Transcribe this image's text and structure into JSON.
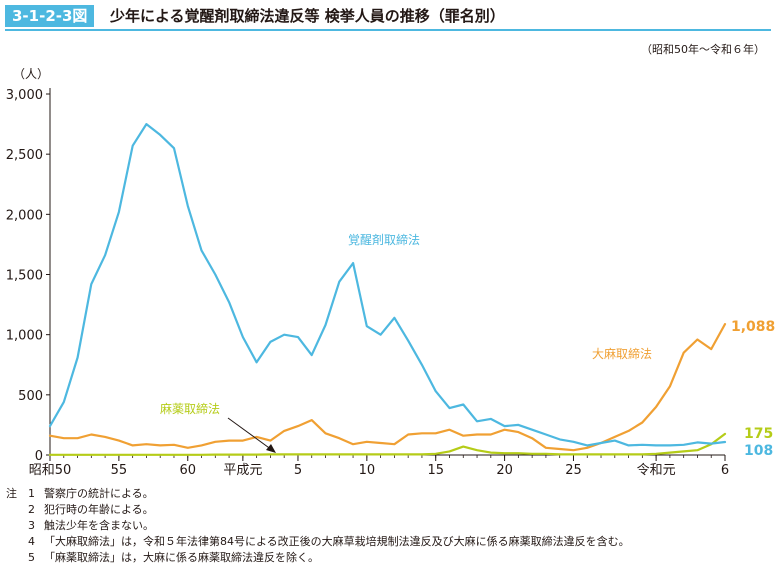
{
  "figure": {
    "number": "3-1-2-3図",
    "title": "少年による覚醒剤取締法違反等 検挙人員の推移（罪名別）",
    "period": "（昭和50年～令和６年）"
  },
  "colors": {
    "accent": "#4db8e0",
    "stimulants": "#4db8e0",
    "cannabis": "#f0a033",
    "narcotics": "#b5cc18"
  },
  "chart_data": {
    "type": "line",
    "y_unit_label": "（人）",
    "ylim": [
      0,
      3000
    ],
    "y_ticks": [
      0,
      500,
      1000,
      1500,
      2000,
      2500,
      3000
    ],
    "y_tick_labels": [
      "0",
      "500",
      "1,000",
      "1,500",
      "2,000",
      "2,500",
      "3,000"
    ],
    "x": [
      1975,
      1976,
      1977,
      1978,
      1979,
      1980,
      1981,
      1982,
      1983,
      1984,
      1985,
      1986,
      1987,
      1988,
      1989,
      1990,
      1991,
      1992,
      1993,
      1994,
      1995,
      1996,
      1997,
      1998,
      1999,
      2000,
      2001,
      2002,
      2003,
      2004,
      2005,
      2006,
      2007,
      2008,
      2009,
      2010,
      2011,
      2012,
      2013,
      2014,
      2015,
      2016,
      2017,
      2018,
      2019,
      2020,
      2021,
      2022,
      2023,
      2024
    ],
    "xlim": [
      1975,
      2024
    ],
    "x_ticks": [
      {
        "x": 1975,
        "label": "昭和50"
      },
      {
        "x": 1980,
        "label": "55"
      },
      {
        "x": 1985,
        "label": "60"
      },
      {
        "x": 1989,
        "label": "平成元"
      },
      {
        "x": 1993,
        "label": "5"
      },
      {
        "x": 1998,
        "label": "10"
      },
      {
        "x": 2003,
        "label": "15"
      },
      {
        "x": 2008,
        "label": "20"
      },
      {
        "x": 2013,
        "label": "25"
      },
      {
        "x": 2019,
        "label": "令和元"
      },
      {
        "x": 2024,
        "label": "6"
      }
    ],
    "series": [
      {
        "key": "stimulants",
        "name": "覚醒剤取締法",
        "end_label": "108",
        "values": [
          240,
          440,
          810,
          1420,
          1660,
          2020,
          2570,
          2750,
          2660,
          2550,
          2070,
          1700,
          1500,
          1270,
          980,
          770,
          940,
          1000,
          980,
          830,
          1080,
          1440,
          1595,
          1070,
          1000,
          1140,
          950,
          750,
          530,
          390,
          420,
          280,
          300,
          240,
          250,
          210,
          170,
          130,
          110,
          80,
          100,
          120,
          80,
          85,
          80,
          80,
          85,
          105,
          95,
          108
        ]
      },
      {
        "key": "cannabis",
        "name": "大麻取締法",
        "end_label": "1,088",
        "values": [
          160,
          140,
          140,
          170,
          150,
          120,
          80,
          90,
          80,
          85,
          60,
          80,
          110,
          120,
          120,
          150,
          120,
          200,
          240,
          290,
          180,
          140,
          90,
          110,
          100,
          90,
          170,
          180,
          180,
          210,
          160,
          170,
          170,
          210,
          190,
          140,
          60,
          50,
          40,
          60,
          100,
          150,
          200,
          270,
          400,
          570,
          850,
          960,
          880,
          1088
        ]
      },
      {
        "key": "narcotics",
        "name": "麻薬取締法",
        "end_label": "175",
        "values": [
          2,
          2,
          2,
          2,
          2,
          2,
          2,
          2,
          2,
          2,
          2,
          2,
          3,
          3,
          3,
          3,
          5,
          5,
          5,
          5,
          5,
          5,
          5,
          5,
          5,
          5,
          5,
          5,
          10,
          30,
          70,
          40,
          20,
          15,
          15,
          10,
          10,
          5,
          5,
          5,
          5,
          5,
          5,
          5,
          10,
          20,
          30,
          40,
          90,
          175
        ]
      }
    ],
    "annotations": [
      {
        "key": "stimulants",
        "text": "覚醒剤取締法"
      },
      {
        "key": "cannabis",
        "text": "大麻取締法"
      },
      {
        "key": "narcotics",
        "text": "麻薬取締法"
      }
    ]
  },
  "notes": {
    "prefix": "注",
    "items": [
      {
        "num": "1",
        "text": "警察庁の統計による。"
      },
      {
        "num": "2",
        "text": "犯行時の年齢による。"
      },
      {
        "num": "3",
        "text": "触法少年を含まない。"
      },
      {
        "num": "4",
        "text": "「大麻取締法」は，令和５年法律第84号による改正後の大麻草栽培規制法違反及び大麻に係る麻薬取締法違反を含む。"
      },
      {
        "num": "5",
        "text": "「麻薬取締法」は，大麻に係る麻薬取締法違反を除く。"
      }
    ]
  }
}
